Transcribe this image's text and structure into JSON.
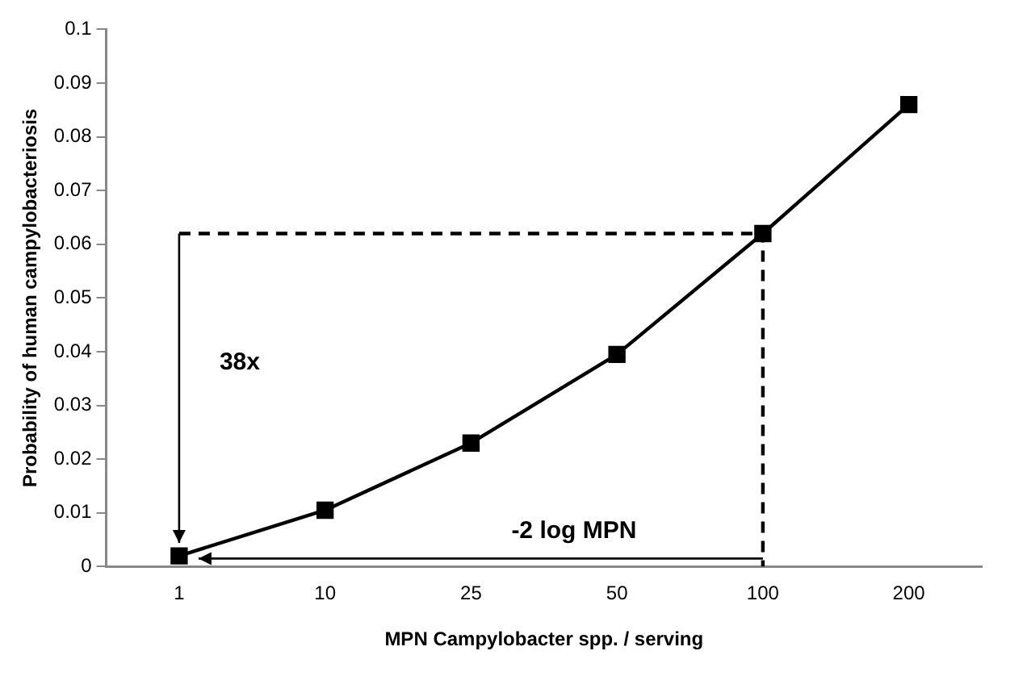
{
  "chart_data": {
    "type": "line",
    "xlabel": "MPN Campylobacter spp. / serving",
    "ylabel": "Probability of human campylobacteriosis",
    "categories": [
      "1",
      "10",
      "25",
      "50",
      "100",
      "200"
    ],
    "series": [
      {
        "color": "#000000",
        "values": [
          0.002,
          0.0105,
          0.023,
          0.0395,
          0.062,
          0.086
        ],
        "marker": "square",
        "line_style": "solid"
      },
      {
        "type": "line",
        "color": "#000000",
        "x": [
          "1",
          "100",
          "100"
        ],
        "values": [
          0.062,
          0.062,
          0
        ],
        "marker": "none",
        "line_style": "dashed"
      }
    ],
    "ylim": [
      0,
      0.1
    ],
    "yticks": [
      0,
      0.01,
      0.02,
      0.03,
      0.04,
      0.05,
      0.06,
      0.07,
      0.08,
      0.09,
      0.1
    ],
    "grid": false,
    "legend": false,
    "annotations": [
      "38x",
      "-2 log MPN"
    ]
  }
}
